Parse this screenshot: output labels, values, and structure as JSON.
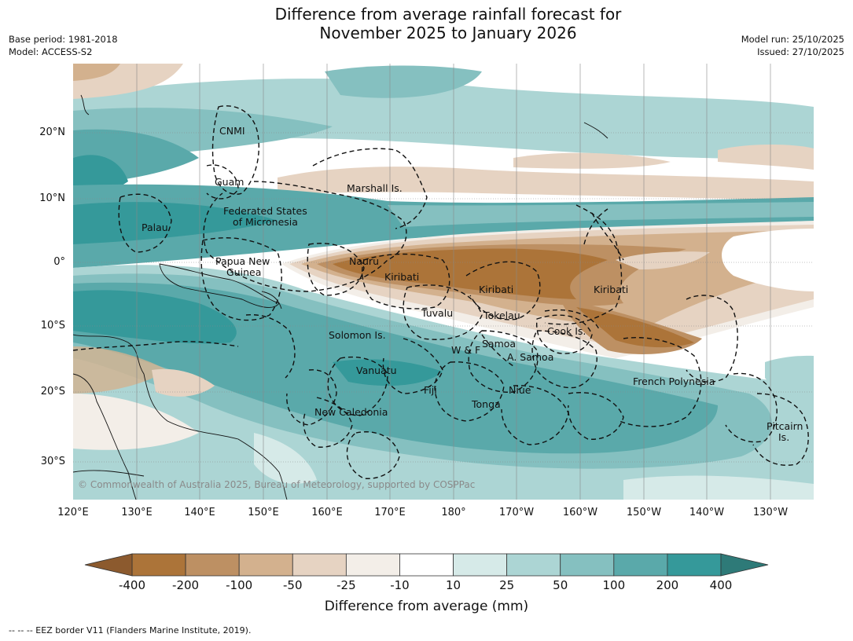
{
  "title_line1": "Difference from average rainfall forecast for",
  "title_line2": "November 2025 to January 2026",
  "meta": {
    "base_period": "Base period: 1981-2018",
    "model": "Model: ACCESS-S2",
    "model_run": "Model run: 25/10/2025",
    "issued": "Issued: 27/10/2025"
  },
  "axes": {
    "lon_ticks": [
      "120°E",
      "130°E",
      "140°E",
      "150°E",
      "160°E",
      "170°E",
      "180°",
      "170°W",
      "160°W",
      "150°W",
      "140°W",
      "130°W"
    ],
    "lat_ticks": [
      "20°N",
      "10°N",
      "0°",
      "10°S",
      "20°S",
      "30°S"
    ]
  },
  "regions": {
    "cnmi": "CNMI",
    "guam": "Guam",
    "marshall": "Marshall Is.",
    "fsm_1": "Federated States",
    "fsm_2": "of Micronesia",
    "palau": "Palau",
    "png_1": "Papua New",
    "png_2": "Guinea",
    "nauru": "Nauru",
    "kiribati_w": "Kiribati",
    "kiribati_c": "Kiribati",
    "kiribati_e": "Kiribati",
    "tuvalu": "Tuvalu",
    "tokelau": "Tokelau",
    "cook": "Cook Is.",
    "solomon": "Solomon Is.",
    "samoa": "Samoa",
    "wf": "W & F",
    "asamoa": "A. Samoa",
    "vanuatu": "Vanuatu",
    "fiji": "Fiji",
    "niue": "Niue",
    "tonga": "Tonga",
    "french_polynesia": "French Polynesia",
    "new_caledonia": "New Caledonia",
    "pitcairn_1": "Pitcairn",
    "pitcairn_2": "Is."
  },
  "copyright": "© Commonwealth of Australia 2025, Bureau of Meteorology, supported by COSPPac",
  "colorbar": {
    "labels": [
      "-400",
      "-200",
      "-100",
      "-50",
      "-25",
      "-10",
      "10",
      "25",
      "50",
      "100",
      "200",
      "400"
    ],
    "colors": [
      "#ac7439",
      "#bd9063",
      "#d3b18e",
      "#e6d3c2",
      "#f3eee8",
      "#ffffff",
      "#d6eae8",
      "#acd5d4",
      "#85c0c0",
      "#5aa9aa",
      "#35999a"
    ],
    "extend_low_color": "#8c5a2e",
    "extend_high_color": "#2e7a78",
    "title": "Difference from average (mm)"
  },
  "footnote": "-- -- -- EEZ border V11 (Flanders Marine Institute, 2019)."
}
